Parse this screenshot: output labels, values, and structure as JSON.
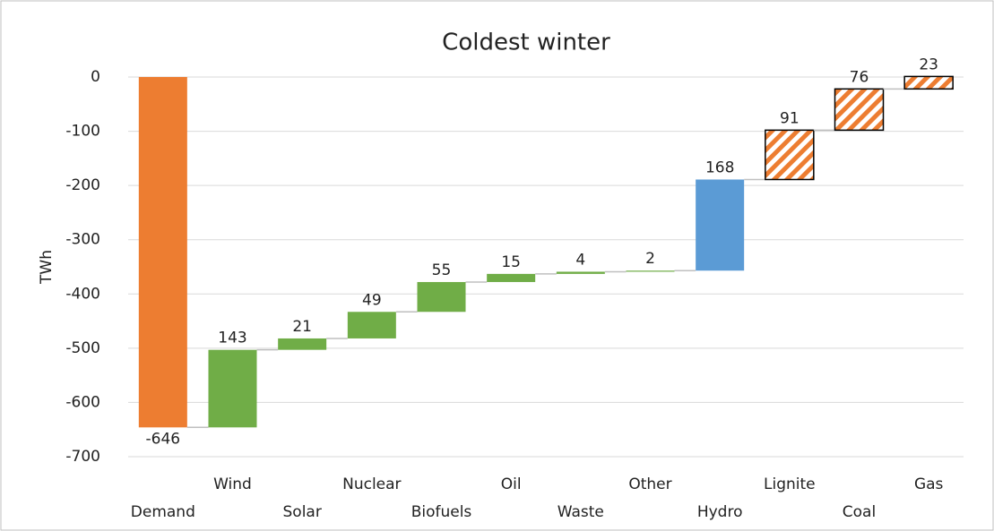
{
  "chart_data": {
    "type": "waterfall",
    "title": "Coldest winter",
    "y_label": "TWh",
    "categories": [
      "Demand",
      "Wind",
      "Solar",
      "Nuclear",
      "Biofuels",
      "Oil",
      "Waste",
      "Other",
      "Hydro",
      "Lignite",
      "Coal",
      "Gas"
    ],
    "values": [
      -646,
      143,
      21,
      49,
      55,
      15,
      4,
      2,
      168,
      91,
      76,
      23
    ],
    "colors": [
      "#ed7d31",
      "#70ad47",
      "#70ad47",
      "#70ad47",
      "#70ad47",
      "#70ad47",
      "#70ad47",
      "#70ad47",
      "#5b9bd5",
      "#ed7d31",
      "#ed7d31",
      "#ed7d31"
    ],
    "hatched": [
      false,
      false,
      false,
      false,
      false,
      false,
      false,
      false,
      false,
      true,
      true,
      true
    ],
    "ylim": [
      -700,
      0
    ],
    "yticks": [
      0,
      -100,
      -200,
      -300,
      -400,
      -500,
      -600,
      -700
    ],
    "grid": true
  }
}
